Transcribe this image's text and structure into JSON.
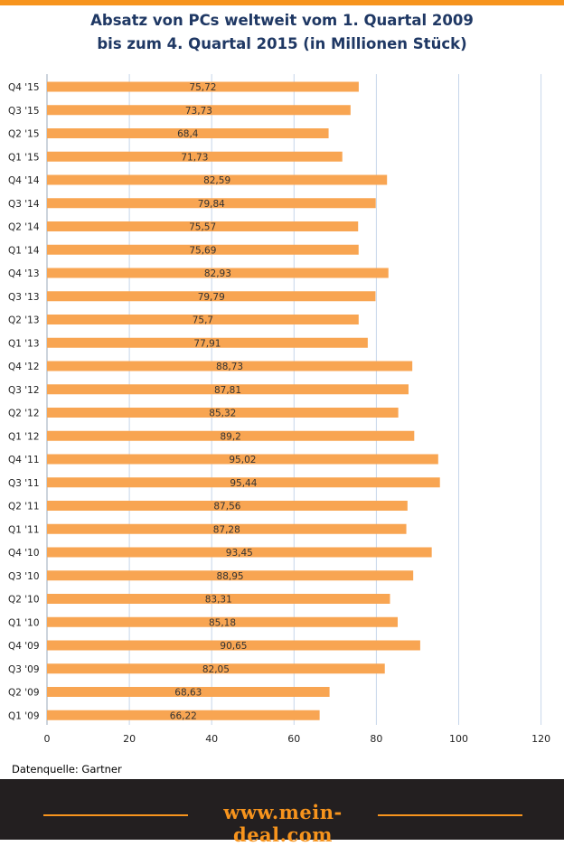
{
  "chart_data": {
    "type": "bar",
    "orientation": "horizontal",
    "title": "Absatz von PCs weltweit vom 1. Quartal  2009 bis zum 4. Quartal  2015 (in Millionen Stück)",
    "title_lines": [
      "Absatz von PCs weltweit vom 1. Quartal  2009",
      "bis zum 4. Quartal  2015 (in Millionen Stück)"
    ],
    "categories": [
      "Q4 '15",
      "Q3 '15",
      "Q2 '15",
      "Q1 '15",
      "Q4 '14",
      "Q3 '14",
      "Q2 '14",
      "Q1 '14",
      "Q4 '13",
      "Q3 '13",
      "Q2 '13",
      "Q1 '13",
      "Q4 '12",
      "Q3 '12",
      "Q2 '12",
      "Q1 '12",
      "Q4 '11",
      "Q3 '11",
      "Q2 '11",
      "Q1 '11",
      "Q4 '10",
      "Q3 '10",
      "Q2 '10",
      "Q1 '10",
      "Q4 '09",
      "Q3 '09",
      "Q2 '09",
      "Q1 '09"
    ],
    "values": [
      75.72,
      73.73,
      68.4,
      71.73,
      82.59,
      79.84,
      75.57,
      75.69,
      82.93,
      79.79,
      75.7,
      77.91,
      88.73,
      87.81,
      85.32,
      89.2,
      95.02,
      95.44,
      87.56,
      87.28,
      93.45,
      88.95,
      83.31,
      85.18,
      90.65,
      82.05,
      68.63,
      66.22
    ],
    "value_labels": [
      "75,72",
      "73,73",
      "68,4",
      "71,73",
      "82,59",
      "79,84",
      "75,57",
      "75,69",
      "82,93",
      "79,79",
      "75,7",
      "77,91",
      "88,73",
      "87,81",
      "85,32",
      "89,2",
      "95,02",
      "95,44",
      "87,56",
      "87,28",
      "93,45",
      "88,95",
      "83,31",
      "85,18",
      "90,65",
      "82,05",
      "68,63",
      "66,22"
    ],
    "xlim": [
      0,
      120
    ],
    "xticks": [
      "0",
      "20",
      "40",
      "60",
      "80",
      "100",
      "120"
    ],
    "grid": true,
    "bar_color": "#f8a552"
  },
  "source": "Datenquelle: Gartner",
  "footer": {
    "site": "www.mein-deal.com"
  },
  "colors": {
    "accent": "#f7941d",
    "title": "#1f3864",
    "footer_bg": "#231f20"
  }
}
